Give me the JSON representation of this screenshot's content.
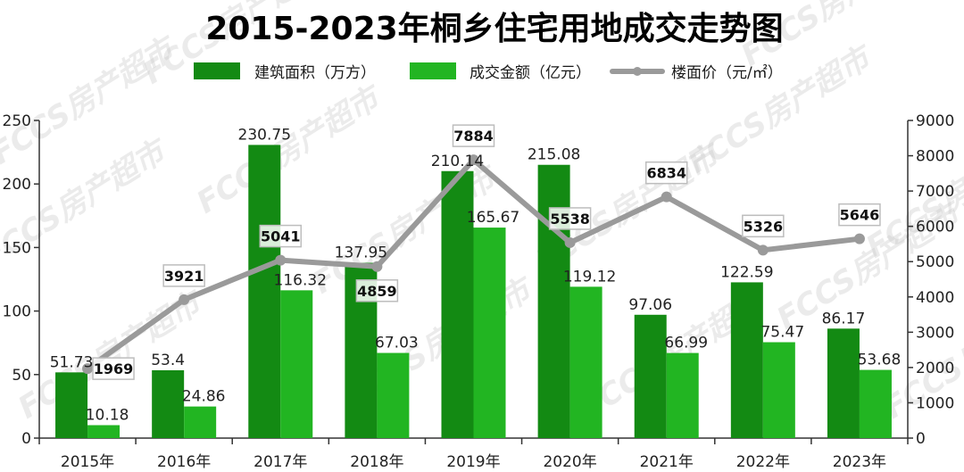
{
  "title": "2015-2023年桐乡住宅用地成交走势图",
  "watermark": "FCCS房产超市",
  "colors": {
    "area": "#138A13",
    "amount": "#22B522",
    "price": "#9A9A9A",
    "axis": "#333333",
    "label_box_border": "#BDBDBD"
  },
  "chart_data": {
    "type": "bar+line",
    "title": "2015-2023年桐乡住宅用地成交走势图",
    "categories": [
      "2015年",
      "2016年",
      "2017年",
      "2018年",
      "2019年",
      "2020年",
      "2021年",
      "2022年",
      "2023年"
    ],
    "series": [
      {
        "name": "建筑面积（万方）",
        "type": "bar",
        "axis": "left",
        "values": [
          51.73,
          53.4,
          230.75,
          137.95,
          210.14,
          215.08,
          97.06,
          122.59,
          86.17
        ]
      },
      {
        "name": "成交金额（亿元）",
        "type": "bar",
        "axis": "left",
        "values": [
          10.18,
          24.86,
          116.32,
          67.03,
          165.67,
          119.12,
          66.99,
          75.47,
          53.68
        ]
      },
      {
        "name": "楼面价（元/㎡）",
        "type": "line",
        "axis": "right",
        "values": [
          1969,
          3921,
          5041,
          4859,
          7884,
          5538,
          6834,
          5326,
          5646
        ]
      }
    ],
    "y_left": {
      "min": 0,
      "max": 250,
      "ticks": [
        "0",
        "50",
        "100",
        "150",
        "200",
        "250"
      ]
    },
    "y_right": {
      "min": 0,
      "max": 9000,
      "ticks": [
        "0",
        "1000",
        "2000",
        "3000",
        "4000",
        "5000",
        "6000",
        "7000",
        "8000",
        "9000"
      ]
    },
    "grid": false,
    "legend_position": "top-center"
  }
}
